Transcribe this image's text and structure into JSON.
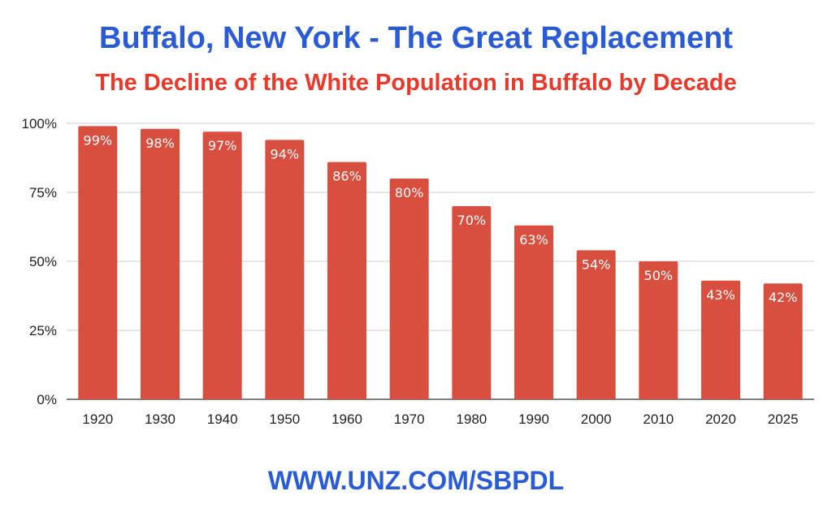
{
  "chart_data": {
    "type": "bar",
    "title": "Buffalo, New York - The Great Replacement",
    "subtitle": "The Decline of the White Population in Buffalo by Decade",
    "xlabel": "",
    "ylabel": "",
    "categories": [
      "1920",
      "1930",
      "1940",
      "1950",
      "1960",
      "1970",
      "1980",
      "1990",
      "2000",
      "2010",
      "2020",
      "2025"
    ],
    "values": [
      99,
      98,
      97,
      94,
      86,
      80,
      70,
      63,
      54,
      50,
      43,
      42
    ],
    "value_labels": [
      "99%",
      "98%",
      "97%",
      "94%",
      "86%",
      "80%",
      "70%",
      "63%",
      "54%",
      "50%",
      "43%",
      "42%"
    ],
    "ylim": [
      0,
      100
    ],
    "yticks": [
      0,
      25,
      50,
      75,
      100
    ],
    "ytick_labels": [
      "0%",
      "25%",
      "50%",
      "75%",
      "100%"
    ],
    "grid": true,
    "legend": "none",
    "colors": {
      "bar": "#d94f3f",
      "title": "#2a5bd7",
      "subtitle": "#e8392b",
      "grid": "#cccccc",
      "axis": "#333333"
    }
  },
  "footer": {
    "text": "WWW.UNZ.COM/SBPDL"
  }
}
